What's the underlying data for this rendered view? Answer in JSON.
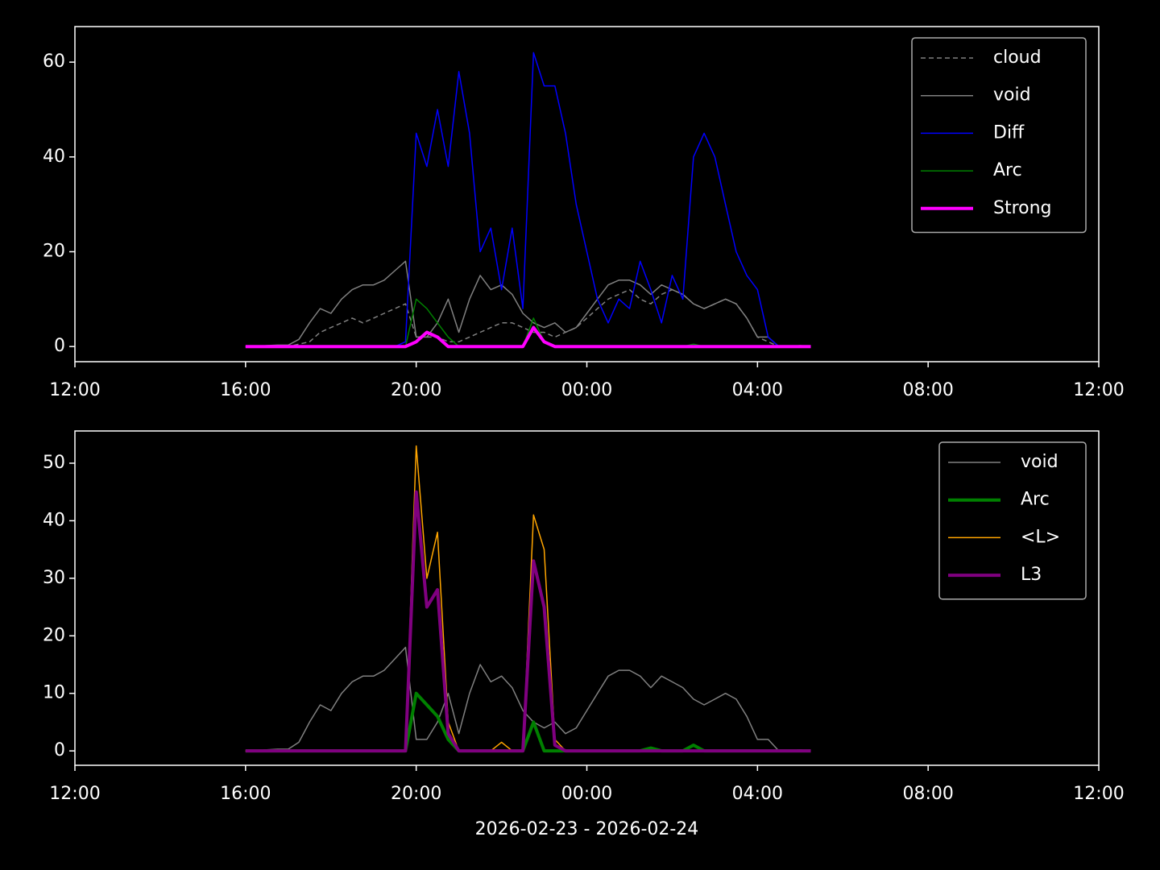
{
  "chart_data": [
    {
      "type": "line",
      "legend": "upper right",
      "x": [
        "2026-02-23 16:00",
        "2026-02-23 16:15",
        "2026-02-23 16:30",
        "2026-02-23 16:45",
        "2026-02-23 17:00",
        "2026-02-23 17:15",
        "2026-02-23 17:30",
        "2026-02-23 17:45",
        "2026-02-23 18:00",
        "2026-02-23 18:15",
        "2026-02-23 18:30",
        "2026-02-23 18:45",
        "2026-02-23 19:00",
        "2026-02-23 19:15",
        "2026-02-23 19:30",
        "2026-02-23 19:45",
        "2026-02-23 20:00",
        "2026-02-23 20:15",
        "2026-02-23 20:30",
        "2026-02-23 20:45",
        "2026-02-23 21:00",
        "2026-02-23 21:15",
        "2026-02-23 21:30",
        "2026-02-23 21:45",
        "2026-02-23 22:00",
        "2026-02-23 22:15",
        "2026-02-23 22:30",
        "2026-02-23 22:45",
        "2026-02-23 23:00",
        "2026-02-23 23:15",
        "2026-02-23 23:30",
        "2026-02-23 23:45",
        "2026-02-24 00:00",
        "2026-02-24 00:15",
        "2026-02-24 00:30",
        "2026-02-24 00:45",
        "2026-02-24 01:00",
        "2026-02-24 01:15",
        "2026-02-24 01:30",
        "2026-02-24 01:45",
        "2026-02-24 02:00",
        "2026-02-24 02:15",
        "2026-02-24 02:30",
        "2026-02-24 02:45",
        "2026-02-24 03:00",
        "2026-02-24 03:15",
        "2026-02-24 03:30",
        "2026-02-24 03:45",
        "2026-02-24 04:00",
        "2026-02-24 04:15",
        "2026-02-24 04:30",
        "2026-02-24 04:45",
        "2026-02-24 05:00",
        "2026-02-24 05:15"
      ],
      "xlim": [
        "2026-02-23 12:00",
        "2026-02-24 12:00"
      ],
      "xticks": [
        {
          "value": "2026-02-23 12:00",
          "label": "12:00"
        },
        {
          "value": "2026-02-23 16:00",
          "label": "16:00"
        },
        {
          "value": "2026-02-23 20:00",
          "label": "20:00"
        },
        {
          "value": "2026-02-24 00:00",
          "label": "00:00"
        },
        {
          "value": "2026-02-24 04:00",
          "label": "04:00"
        },
        {
          "value": "2026-02-24 08:00",
          "label": "08:00"
        },
        {
          "value": "2026-02-24 12:00",
          "label": "12:00"
        }
      ],
      "ylim": [
        -3.2,
        67.5
      ],
      "yticks": [
        0,
        20,
        40,
        60
      ],
      "series": [
        {
          "name": "cloud",
          "color": "#808080",
          "linestyle": "dashed",
          "linewidth": 1.5,
          "values": [
            0,
            0,
            0,
            0,
            0,
            0.5,
            1,
            3,
            4,
            5,
            6,
            5,
            6,
            7,
            8,
            9,
            2,
            2,
            2,
            1,
            1,
            2,
            3,
            4,
            5,
            5,
            4,
            3,
            3,
            2,
            3,
            4,
            6,
            8,
            10,
            11,
            12,
            10,
            9,
            11,
            12,
            11,
            9,
            8,
            9,
            10,
            9,
            6,
            2,
            1,
            0,
            0,
            0,
            0
          ]
        },
        {
          "name": "void",
          "color": "#808080",
          "linestyle": "solid",
          "linewidth": 1.5,
          "values": [
            0,
            0,
            0.2,
            0.3,
            0.3,
            1.5,
            5,
            8,
            7,
            10,
            12,
            13,
            13,
            14,
            16,
            18,
            2,
            2,
            5,
            10,
            3,
            10,
            15,
            12,
            13,
            11,
            7,
            5,
            4,
            5,
            3,
            4,
            7,
            10,
            13,
            14,
            14,
            13,
            11,
            13,
            12,
            11,
            9,
            8,
            9,
            10,
            9,
            6,
            2,
            2,
            0,
            0,
            0.2,
            0
          ]
        },
        {
          "name": "Diff",
          "color": "#0000ff",
          "linestyle": "solid",
          "linewidth": 1.5,
          "values": [
            0,
            0,
            0,
            0,
            0,
            0,
            0,
            0,
            0,
            0,
            0,
            0,
            0,
            0,
            0,
            1,
            45,
            38,
            50,
            38,
            58,
            45,
            20,
            25,
            12,
            25,
            8,
            62,
            55,
            55,
            45,
            30,
            20,
            10,
            5,
            10,
            8,
            18,
            12,
            5,
            15,
            10,
            40,
            45,
            40,
            30,
            20,
            15,
            12,
            2,
            0,
            0,
            0,
            0
          ]
        },
        {
          "name": "Arc",
          "color": "#008000",
          "linestyle": "solid",
          "linewidth": 1.5,
          "values": [
            0,
            0,
            0,
            0,
            0,
            0,
            0,
            0,
            0,
            0,
            0,
            0,
            0,
            0,
            0,
            0,
            10,
            8,
            5,
            2,
            0,
            0,
            0,
            0,
            0,
            0,
            0,
            6,
            1,
            0,
            0,
            0,
            0,
            0,
            0,
            0,
            0,
            0,
            0,
            0,
            0,
            0,
            0.5,
            0,
            0,
            0,
            0,
            0,
            0,
            0,
            0,
            0,
            0,
            0
          ]
        },
        {
          "name": "Strong",
          "color": "#ff00ff",
          "linestyle": "solid",
          "linewidth": 4,
          "values": [
            0,
            0,
            0,
            0,
            0,
            0,
            0,
            0,
            0,
            0,
            0,
            0,
            0,
            0,
            0,
            0,
            1,
            3,
            2,
            0,
            0,
            0,
            0,
            0,
            0,
            0,
            0,
            4,
            1,
            0,
            0,
            0,
            0,
            0,
            0,
            0,
            0,
            0,
            0,
            0,
            0,
            0,
            0,
            0,
            0,
            0,
            0,
            0,
            0,
            0,
            0,
            0,
            0,
            0
          ]
        }
      ]
    },
    {
      "type": "line",
      "legend": "upper right",
      "xlabel": "2026-02-23 - 2026-02-24",
      "x": [
        "2026-02-23 16:00",
        "2026-02-23 16:15",
        "2026-02-23 16:30",
        "2026-02-23 16:45",
        "2026-02-23 17:00",
        "2026-02-23 17:15",
        "2026-02-23 17:30",
        "2026-02-23 17:45",
        "2026-02-23 18:00",
        "2026-02-23 18:15",
        "2026-02-23 18:30",
        "2026-02-23 18:45",
        "2026-02-23 19:00",
        "2026-02-23 19:15",
        "2026-02-23 19:30",
        "2026-02-23 19:45",
        "2026-02-23 20:00",
        "2026-02-23 20:15",
        "2026-02-23 20:30",
        "2026-02-23 20:45",
        "2026-02-23 21:00",
        "2026-02-23 21:15",
        "2026-02-23 21:30",
        "2026-02-23 21:45",
        "2026-02-23 22:00",
        "2026-02-23 22:15",
        "2026-02-23 22:30",
        "2026-02-23 22:45",
        "2026-02-23 23:00",
        "2026-02-23 23:15",
        "2026-02-23 23:30",
        "2026-02-23 23:45",
        "2026-02-24 00:00",
        "2026-02-24 00:15",
        "2026-02-24 00:30",
        "2026-02-24 00:45",
        "2026-02-24 01:00",
        "2026-02-24 01:15",
        "2026-02-24 01:30",
        "2026-02-24 01:45",
        "2026-02-24 02:00",
        "2026-02-24 02:15",
        "2026-02-24 02:30",
        "2026-02-24 02:45",
        "2026-02-24 03:00",
        "2026-02-24 03:15",
        "2026-02-24 03:30",
        "2026-02-24 03:45",
        "2026-02-24 04:00",
        "2026-02-24 04:15",
        "2026-02-24 04:30",
        "2026-02-24 04:45",
        "2026-02-24 05:00",
        "2026-02-24 05:15"
      ],
      "xlim": [
        "2026-02-23 12:00",
        "2026-02-24 12:00"
      ],
      "xticks": [
        {
          "value": "2026-02-23 12:00",
          "label": "12:00"
        },
        {
          "value": "2026-02-23 16:00",
          "label": "16:00"
        },
        {
          "value": "2026-02-23 20:00",
          "label": "20:00"
        },
        {
          "value": "2026-02-24 00:00",
          "label": "00:00"
        },
        {
          "value": "2026-02-24 04:00",
          "label": "04:00"
        },
        {
          "value": "2026-02-24 08:00",
          "label": "08:00"
        },
        {
          "value": "2026-02-24 12:00",
          "label": "12:00"
        }
      ],
      "ylim": [
        -2.5,
        55.6
      ],
      "yticks": [
        0,
        10,
        20,
        30,
        40,
        50
      ],
      "series": [
        {
          "name": "void",
          "color": "#808080",
          "linestyle": "solid",
          "linewidth": 1.5,
          "values": [
            0,
            0,
            0.2,
            0.3,
            0.3,
            1.5,
            5,
            8,
            7,
            10,
            12,
            13,
            13,
            14,
            16,
            18,
            2,
            2,
            5,
            10,
            3,
            10,
            15,
            12,
            13,
            11,
            7,
            5,
            4,
            5,
            3,
            4,
            7,
            10,
            13,
            14,
            14,
            13,
            11,
            13,
            12,
            11,
            9,
            8,
            9,
            10,
            9,
            6,
            2,
            2,
            0,
            0,
            0.2,
            0
          ]
        },
        {
          "name": "Arc",
          "color": "#008000",
          "linestyle": "solid",
          "linewidth": 4,
          "values": [
            0,
            0,
            0,
            0,
            0,
            0,
            0,
            0,
            0,
            0,
            0,
            0,
            0,
            0,
            0,
            0,
            10,
            8,
            6,
            2,
            0,
            0,
            0,
            0,
            0,
            0,
            0,
            5,
            0,
            0,
            0,
            0,
            0,
            0,
            0,
            0,
            0,
            0,
            0.5,
            0,
            0,
            0,
            1,
            0,
            0,
            0,
            0,
            0,
            0,
            0,
            0,
            0,
            0,
            0
          ]
        },
        {
          "name": "<L>",
          "color": "#ffa500",
          "linestyle": "solid",
          "linewidth": 1.5,
          "values": [
            0,
            0,
            0,
            0,
            0,
            0,
            0,
            0,
            0,
            0,
            0,
            0,
            0,
            0,
            0,
            0,
            53,
            30,
            38,
            5,
            0,
            0,
            0,
            0,
            1.5,
            0,
            0,
            41,
            35,
            2,
            0,
            0,
            0,
            0,
            0,
            0,
            0,
            0,
            0,
            0,
            0,
            0,
            0,
            0,
            0,
            0,
            0,
            0,
            0,
            0,
            0,
            0,
            0,
            0
          ]
        },
        {
          "name": "L3",
          "color": "#800080",
          "linestyle": "solid",
          "linewidth": 4,
          "values": [
            0,
            0,
            0,
            0,
            0,
            0,
            0,
            0,
            0,
            0,
            0,
            0,
            0,
            0,
            0,
            0,
            45,
            25,
            28,
            3,
            0,
            0,
            0,
            0,
            0,
            0,
            0,
            33,
            25,
            1,
            0,
            0,
            0,
            0,
            0,
            0,
            0,
            0,
            0,
            0,
            0,
            0,
            0,
            0,
            0,
            0,
            0,
            0,
            0,
            0,
            0,
            0,
            0,
            0
          ]
        }
      ]
    }
  ]
}
